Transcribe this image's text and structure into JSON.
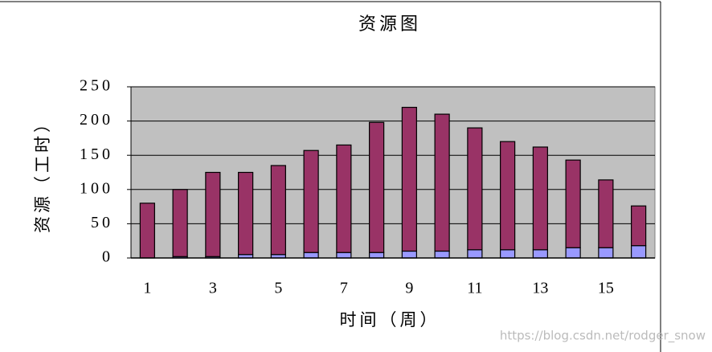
{
  "chart_data": {
    "type": "stacked-bar",
    "title": "资源图",
    "x_label": "时间（周）",
    "y_label": "资源（工时）",
    "categories": [
      "1",
      null,
      "3",
      null,
      "5",
      null,
      "7",
      null,
      "9",
      null,
      "11",
      null,
      "13",
      null,
      "15",
      null
    ],
    "series": [
      {
        "color": "#9999ff",
        "values": [
          0,
          2,
          2,
          5,
          5,
          8,
          8,
          8,
          10,
          10,
          12,
          12,
          12,
          15,
          15,
          18
        ]
      },
      {
        "color": "#993366",
        "values": [
          80,
          98,
          123,
          120,
          130,
          149,
          157,
          190,
          210,
          200,
          178,
          158,
          150,
          128,
          99,
          58
        ]
      }
    ],
    "ylim": [
      0,
      250
    ],
    "yticks": [
      0,
      50,
      100,
      150,
      200,
      250
    ],
    "grid": true,
    "plot_background": "#c0c0c0",
    "watermark": "https://blog.csdn.net/rodger_snow"
  }
}
